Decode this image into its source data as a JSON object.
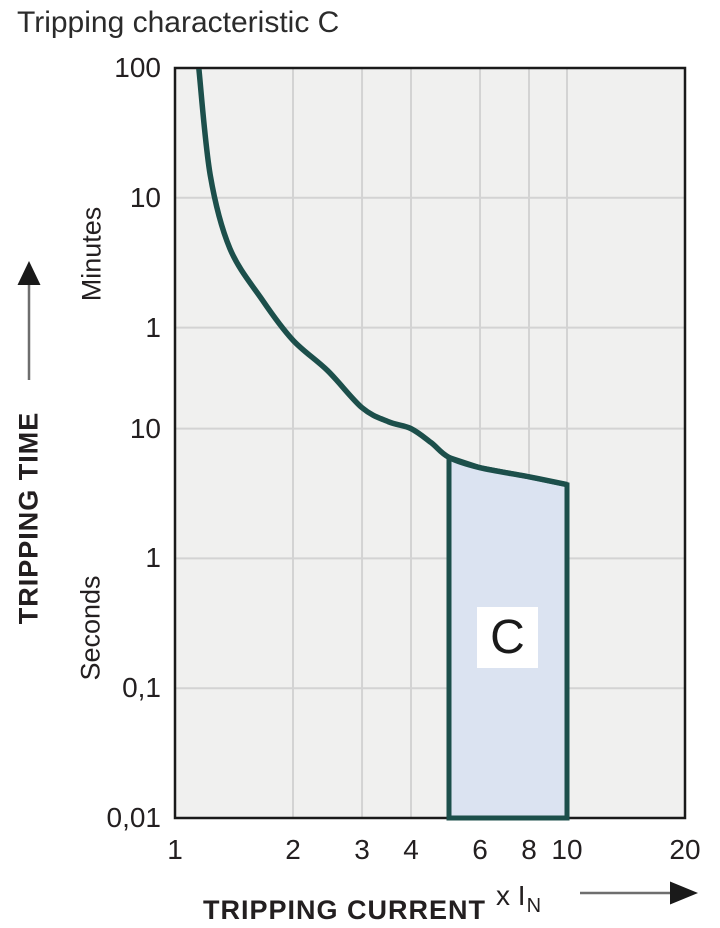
{
  "title": "Tripping characteristic C",
  "y_axis": {
    "title": "TRIPPING TIME",
    "unit_top": "Minutes",
    "unit_bottom": "Seconds",
    "ticks": [
      {
        "label": "100",
        "seconds": 6000,
        "grid": false
      },
      {
        "label": "10",
        "seconds": 600,
        "grid": true
      },
      {
        "label": "1",
        "seconds": 60,
        "grid": true
      },
      {
        "label": "10",
        "seconds": 10,
        "grid": true
      },
      {
        "label": "1",
        "seconds": 1,
        "grid": true
      },
      {
        "label": "0,1",
        "seconds": 0.1,
        "grid": true
      },
      {
        "label": "0,01",
        "seconds": 0.01,
        "grid": false
      }
    ]
  },
  "x_axis": {
    "title": "TRIPPING CURRENT",
    "multiplier_prefix": "x I",
    "multiplier_sub": "N",
    "ticks": [
      {
        "label": "1",
        "value": 1,
        "grid": false
      },
      {
        "label": "2",
        "value": 2,
        "grid": true
      },
      {
        "label": "3",
        "value": 3,
        "grid": true
      },
      {
        "label": "4",
        "value": 4,
        "grid": true
      },
      {
        "label": "6",
        "value": 6,
        "grid": true
      },
      {
        "label": "8",
        "value": 8,
        "grid": true
      },
      {
        "label": "10",
        "value": 10,
        "grid": true
      },
      {
        "label": "20",
        "value": 20,
        "grid": false
      }
    ]
  },
  "region": {
    "label": "C"
  },
  "colors": {
    "curve": "#1c4f4b",
    "region_fill": "#dbe3f1",
    "plot_bg": "#f0f0ef",
    "grid": "#d3d3d3",
    "border": "#1a1a1a",
    "arrow_line": "#6e6e6e",
    "arrow_head": "#1a1a1a"
  },
  "chart_data": {
    "type": "line",
    "title": "Tripping characteristic C",
    "xlabel": "TRIPPING CURRENT (x IN)",
    "ylabel": "TRIPPING TIME (minutes above 60 s, seconds below)",
    "x_scale": "log",
    "y_scale": "log",
    "x_range": [
      1,
      20
    ],
    "y_range_seconds": [
      0.01,
      6000
    ],
    "x_tick_values": [
      1,
      2,
      3,
      4,
      6,
      8,
      10,
      20
    ],
    "y_tick_values_seconds": [
      6000,
      600,
      60,
      10,
      1,
      0.1,
      0.01
    ],
    "grid": true,
    "legend": "none",
    "series": [
      {
        "name": "C tripping curve",
        "points_x_multiple_of_In_vs_time_seconds": [
          [
            1.15,
            6000
          ],
          [
            1.23,
            900
          ],
          [
            1.38,
            245
          ],
          [
            1.67,
            98
          ],
          [
            2.0,
            48
          ],
          [
            2.45,
            28
          ],
          [
            3.0,
            14.5
          ],
          [
            3.5,
            11.3
          ],
          [
            4.0,
            10
          ],
          [
            4.5,
            7.8
          ],
          [
            5.0,
            6.0
          ],
          [
            6.0,
            5.0
          ],
          [
            8.0,
            4.25
          ],
          [
            10.0,
            3.7
          ]
        ]
      }
    ],
    "tripping_region": {
      "label": "C",
      "x_range": [
        5,
        10
      ],
      "top_edge_x_vs_seconds": [
        [
          5,
          6.0
        ],
        [
          6,
          5.0
        ],
        [
          8,
          4.25
        ],
        [
          10,
          3.7
        ]
      ],
      "bottom_seconds": 0.01
    }
  }
}
